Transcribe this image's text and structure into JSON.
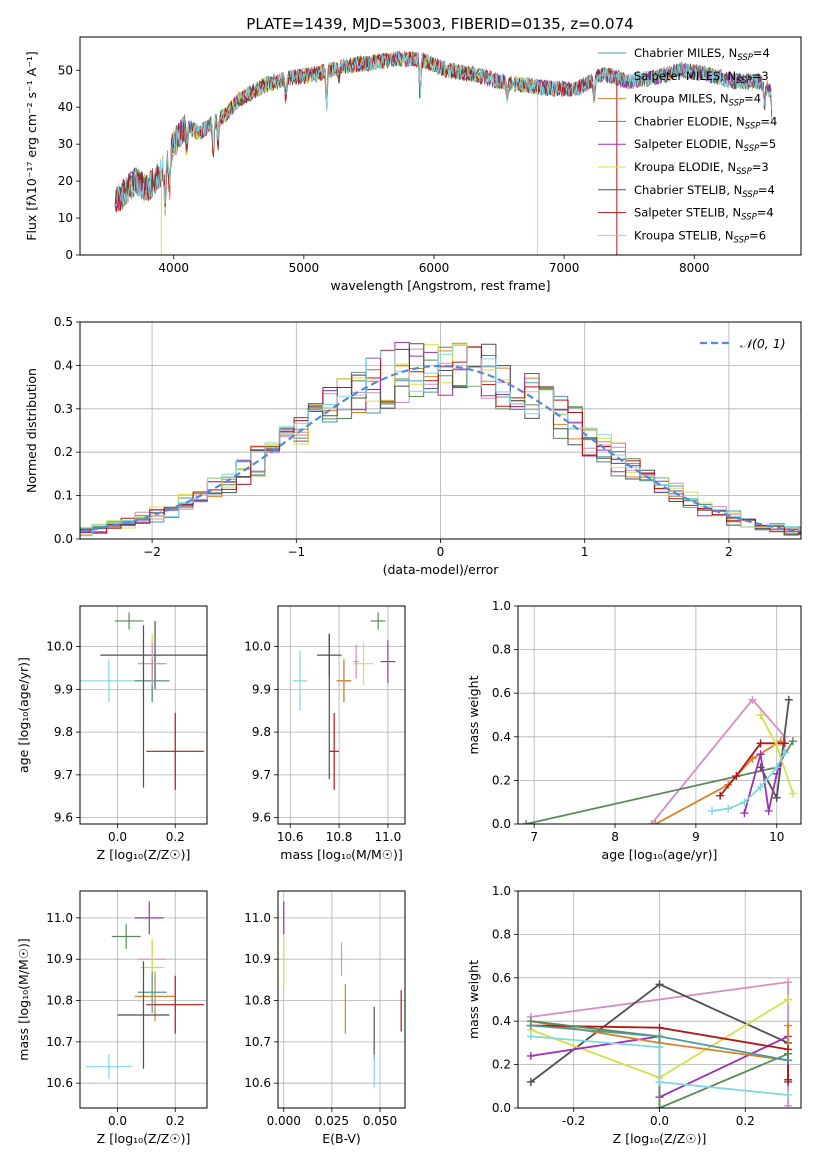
{
  "figure": {
    "title": "PLATE=1439, MJD=53003, FIBERID=0135, z=0.074"
  },
  "colors": {
    "Chabrier MILES": "#4c9a9a",
    "Salpeter MILES": "#d48fc0",
    "Kroupa MILES": "#d9822b",
    "Chabrier ELODIE": "#5a8a5a",
    "Salpeter ELODIE": "#9b30b0",
    "Kroupa ELODIE": "#d4e04a",
    "Chabrier STELIB": "#505050",
    "Salpeter STELIB": "#b01818",
    "Kroupa STELIB": "#80d8e0",
    "normal": "#5588dd",
    "fit_pink": "#e08ac0",
    "fit_blue": "#6688ee"
  },
  "legend_spectrum": [
    {
      "name": "Chabrier MILES",
      "base": "Chabrier MILES, N",
      "sub": "SSP",
      "tail": "=4"
    },
    {
      "name": "Salpeter MILES",
      "base": "Salpeter MILES, N",
      "sub": "SSP",
      "tail": "=3"
    },
    {
      "name": "Kroupa MILES",
      "base": "Kroupa MILES, N",
      "sub": "SSP",
      "tail": "=4"
    },
    {
      "name": "Chabrier ELODIE",
      "base": "Chabrier ELODIE, N",
      "sub": "SSP",
      "tail": "=4"
    },
    {
      "name": "Salpeter ELODIE",
      "base": "Salpeter ELODIE, N",
      "sub": "SSP",
      "tail": "=5"
    },
    {
      "name": "Kroupa ELODIE",
      "base": "Kroupa ELODIE, N",
      "sub": "SSP",
      "tail": "=3"
    },
    {
      "name": "Chabrier STELIB",
      "base": "Chabrier STELIB, N",
      "sub": "SSP",
      "tail": "=4"
    },
    {
      "name": "Salpeter STELIB",
      "base": "Salpeter STELIB, N",
      "sub": "SSP",
      "tail": "=4"
    },
    {
      "name": "Kroupa STELIB",
      "base": "Kroupa STELIB, N",
      "sub": "SSP",
      "tail": "=6"
    }
  ],
  "chart_data": [
    {
      "id": "spectrum",
      "type": "line",
      "xlabel": "wavelength [Angstrom, rest frame]",
      "ylabel": "Flux [fλ10⁻¹⁷ erg cm⁻² s⁻¹ A⁻¹]",
      "xlim": [
        3280,
        8820
      ],
      "ylim": [
        0,
        59
      ],
      "xticks": [
        4000,
        5000,
        6000,
        7000,
        8000
      ],
      "yticks": [
        0,
        10,
        20,
        30,
        40,
        50
      ],
      "continuum": {
        "x": [
          3550,
          3600,
          3700,
          3800,
          3900,
          3950,
          4000,
          4100,
          4200,
          4300,
          4400,
          4500,
          4700,
          4900,
          5100,
          5300,
          5500,
          5700,
          5900,
          6100,
          6300,
          6500,
          6700,
          6900,
          7100,
          7300,
          7500,
          7700,
          7900,
          8100,
          8300,
          8500,
          8600
        ],
        "y": [
          15,
          16,
          20,
          18,
          22,
          25,
          30,
          35,
          33,
          36,
          38,
          42,
          46,
          48,
          49,
          51,
          52,
          53,
          53,
          50,
          49,
          47,
          46,
          45,
          45,
          49,
          47,
          48,
          50,
          49,
          47,
          47,
          44
        ]
      },
      "absorption": [
        {
          "x": 3934,
          "depth": 10
        },
        {
          "x": 3969,
          "depth": 9
        },
        {
          "x": 4101,
          "depth": 6
        },
        {
          "x": 4304,
          "depth": 9
        },
        {
          "x": 4340,
          "depth": 7
        },
        {
          "x": 4861,
          "depth": 5
        },
        {
          "x": 5175,
          "depth": 9
        },
        {
          "x": 5270,
          "depth": 3
        },
        {
          "x": 5893,
          "depth": 10
        },
        {
          "x": 6563,
          "depth": 4
        },
        {
          "x": 7230,
          "depth": 5
        },
        {
          "x": 8540,
          "depth": 5
        },
        {
          "x": 8600,
          "depth": 7
        }
      ],
      "dropouts": [
        {
          "series": "Kroupa ELODIE",
          "x": 3905,
          "to": 0
        },
        {
          "series": "Kroupa ELODIE",
          "x": 6795,
          "to": 0
        },
        {
          "series": "Salpeter STELIB",
          "x": 7405,
          "to": 0
        }
      ],
      "series_range": {
        "Kroupa ELODIE": [
          3905,
          6795
        ],
        "Salpeter STELIB": [
          3550,
          7405
        ]
      }
    },
    {
      "id": "residuals",
      "type": "bar",
      "xlabel": "(data-model)/error",
      "ylabel": "Normed distribution",
      "xlim": [
        -2.5,
        2.5
      ],
      "ylim": [
        0,
        0.5
      ],
      "xticks": [
        -2,
        -1,
        0,
        1,
        2
      ],
      "yticks": [
        0.0,
        0.1,
        0.2,
        0.3,
        0.4,
        0.5
      ],
      "legend_label": "𝒩(0, 1)",
      "normal": {
        "mu": 0,
        "sigma": 1
      }
    },
    {
      "id": "age_vs_Z",
      "type": "scatter",
      "xlabel": "Z [log₁₀(Z/Z☉)]",
      "ylabel": "age  [log₁₀(age/yr)]",
      "xlim": [
        -0.13,
        0.31
      ],
      "ylim": [
        9.585,
        10.095
      ],
      "xticks": [
        0.0,
        0.2
      ],
      "yticks": [
        9.6,
        9.7,
        9.8,
        9.9,
        10.0
      ],
      "points": [
        {
          "series": "Chabrier ELODIE",
          "x": 0.04,
          "y": 10.06,
          "xerr": 0.05,
          "yerr": 0.02
        },
        {
          "series": "Chabrier STELIB",
          "x": 0.13,
          "y": 9.98,
          "xerr": 0.19,
          "yerr": 0.08
        },
        {
          "series": "Kroupa ELODIE",
          "x": 0.12,
          "y": 9.96,
          "xerr": 0.04,
          "yerr": 0.07
        },
        {
          "series": "Kroupa STELIB",
          "x": -0.03,
          "y": 9.92,
          "xerr": 0.12,
          "yerr": 0.05
        },
        {
          "series": "Kroupa MILES",
          "x": 0.12,
          "y": 9.92,
          "xerr": 0.06,
          "yerr": 0.05
        },
        {
          "series": "Chabrier MILES",
          "x": 0.12,
          "y": 9.92,
          "xerr": 0.06,
          "yerr": 0.05
        },
        {
          "series": "Salpeter MILES",
          "x": 0.12,
          "y": 9.96,
          "xerr": 0.05,
          "yerr": 0.05
        },
        {
          "series": "Chabrier STELIB",
          "x": 0.09,
          "y": 9.86,
          "xerr": 0.0,
          "yerr": 0.19
        },
        {
          "series": "Salpeter STELIB",
          "x": 0.2,
          "y": 9.755,
          "xerr": 0.1,
          "yerr": 0.09
        }
      ]
    },
    {
      "id": "age_vs_mass",
      "type": "scatter",
      "xlabel": "mass [log₁₀(M/M☉)]",
      "ylabel": "",
      "xlim": [
        10.55,
        11.07
      ],
      "ylim": [
        9.585,
        10.095
      ],
      "xticks": [
        10.6,
        10.8,
        11.0
      ],
      "yticks": [
        9.6,
        9.7,
        9.8,
        9.9,
        10.0
      ],
      "points": [
        {
          "series": "Chabrier ELODIE",
          "x": 10.96,
          "y": 10.06,
          "xerr": 0.03,
          "yerr": 0.02
        },
        {
          "series": "Chabrier STELIB",
          "x": 10.76,
          "y": 9.98,
          "xerr": 0.05,
          "yerr": 0.05
        },
        {
          "series": "Kroupa ELODIE",
          "x": 10.9,
          "y": 9.96,
          "xerr": 0.04,
          "yerr": 0.05
        },
        {
          "series": "Salpeter ELODIE",
          "x": 11.0,
          "y": 9.965,
          "xerr": 0.03,
          "yerr": 0.05
        },
        {
          "series": "Salpeter MILES",
          "x": 10.87,
          "y": 9.965,
          "xerr": 0.01,
          "yerr": 0.04
        },
        {
          "series": "Kroupa STELIB",
          "x": 10.64,
          "y": 9.92,
          "xerr": 0.03,
          "yerr": 0.07
        },
        {
          "series": "Chabrier MILES",
          "x": 10.82,
          "y": 9.92,
          "xerr": 0.03,
          "yerr": 0.05
        },
        {
          "series": "Kroupa MILES",
          "x": 10.82,
          "y": 9.92,
          "xerr": 0.03,
          "yerr": 0.05
        },
        {
          "series": "Chabrier STELIB",
          "x": 10.76,
          "y": 9.86,
          "xerr": 0.0,
          "yerr": 0.17
        },
        {
          "series": "Salpeter STELIB",
          "x": 10.78,
          "y": 9.755,
          "xerr": 0.02,
          "yerr": 0.09
        }
      ]
    },
    {
      "id": "weight_vs_age",
      "type": "line",
      "xlabel": "age  [log₁₀(age/yr)]",
      "ylabel": "mass weight",
      "xlim": [
        6.8,
        10.3
      ],
      "ylim": [
        0,
        1.0
      ],
      "xticks": [
        7,
        8,
        9,
        10
      ],
      "yticks": [
        0.0,
        0.2,
        0.4,
        0.6,
        0.8,
        1.0
      ],
      "series": [
        {
          "name": "Salpeter MILES",
          "x": [
            8.45,
            9.7,
            10.1
          ],
          "y": [
            0.0,
            0.57,
            0.4
          ]
        },
        {
          "name": "Chabrier ELODIE",
          "x": [
            6.9,
            10.0,
            10.2
          ],
          "y": [
            0.0,
            0.26,
            0.38
          ]
        },
        {
          "name": "Chabrier STELIB",
          "x": [
            9.8,
            10.0,
            10.15
          ],
          "y": [
            0.26,
            0.12,
            0.57
          ]
        },
        {
          "name": "Kroupa MILES",
          "x": [
            8.5,
            9.4,
            9.7,
            10.05
          ],
          "y": [
            0.0,
            0.18,
            0.3,
            0.38
          ]
        },
        {
          "name": "Salpeter STELIB",
          "x": [
            9.3,
            9.5,
            9.8,
            10.1
          ],
          "y": [
            0.13,
            0.22,
            0.37,
            0.37
          ]
        },
        {
          "name": "Salpeter ELODIE",
          "x": [
            9.6,
            9.8,
            9.9,
            10.0,
            10.1
          ],
          "y": [
            0.05,
            0.32,
            0.06,
            0.23,
            0.33
          ]
        },
        {
          "name": "Kroupa ELODIE",
          "x": [
            9.8,
            10.0,
            10.2
          ],
          "y": [
            0.5,
            0.36,
            0.14
          ]
        },
        {
          "name": "Kroupa STELIB",
          "x": [
            9.2,
            9.4,
            9.6,
            9.8,
            10.0,
            10.1
          ],
          "y": [
            0.06,
            0.07,
            0.1,
            0.17,
            0.26,
            0.33
          ]
        }
      ]
    },
    {
      "id": "mass_vs_Z",
      "type": "scatter",
      "xlabel": "Z [log₁₀(Z/Z☉)]",
      "ylabel": "mass [log₁₀(M/M☉)]",
      "xlim": [
        -0.13,
        0.31
      ],
      "ylim": [
        10.54,
        11.065
      ],
      "xticks": [
        0.0,
        0.2
      ],
      "yticks": [
        10.6,
        10.7,
        10.8,
        10.9,
        11.0
      ],
      "points": [
        {
          "series": "Chabrier ELODIE",
          "x": 0.03,
          "y": 10.955,
          "xerr": 0.05,
          "yerr": 0.03
        },
        {
          "series": "Salpeter ELODIE",
          "x": 0.11,
          "y": 11.0,
          "xerr": 0.05,
          "yerr": 0.04
        },
        {
          "series": "Salpeter MILES",
          "x": 0.12,
          "y": 10.9,
          "xerr": 0.05,
          "yerr": 0.04
        },
        {
          "series": "Kroupa ELODIE",
          "x": 0.12,
          "y": 10.88,
          "xerr": 0.04,
          "yerr": 0.07
        },
        {
          "series": "Kroupa MILES",
          "x": 0.13,
          "y": 10.81,
          "xerr": 0.07,
          "yerr": 0.06
        },
        {
          "series": "Salpeter STELIB",
          "x": 0.2,
          "y": 10.79,
          "xerr": 0.1,
          "yerr": 0.07
        },
        {
          "series": "Chabrier MILES",
          "x": 0.12,
          "y": 10.82,
          "xerr": 0.05,
          "yerr": 0.05
        },
        {
          "series": "Chabrier STELIB",
          "x": 0.09,
          "y": 10.765,
          "xerr": 0.09,
          "yerr": 0.13
        },
        {
          "series": "Kroupa STELIB",
          "x": -0.03,
          "y": 10.64,
          "xerr": 0.08,
          "yerr": 0.03
        }
      ]
    },
    {
      "id": "mass_vs_ebv",
      "type": "scatter",
      "xlabel": "E(B-V)",
      "ylabel": "",
      "xlim": [
        -0.003,
        0.063
      ],
      "ylim": [
        10.54,
        11.065
      ],
      "xticks": [
        0.0,
        0.025,
        0.05
      ],
      "yticks": [
        10.6,
        10.7,
        10.8,
        10.9,
        11.0
      ],
      "points": [
        {
          "series": "Salpeter ELODIE",
          "x": 0.0,
          "y": 11.0,
          "xerr": 0.0,
          "yerr": 0.04
        },
        {
          "series": "Kroupa ELODIE",
          "x": 0.0,
          "y": 10.89,
          "xerr": 0.0,
          "yerr": 0.06
        },
        {
          "series": "Salpeter MILES",
          "x": 0.03,
          "y": 10.9,
          "xerr": 0.0,
          "yerr": 0.04
        },
        {
          "series": "Kroupa MILES",
          "x": 0.032,
          "y": 10.78,
          "xerr": 0.0,
          "yerr": 0.06
        },
        {
          "series": "Chabrier STELIB",
          "x": 0.047,
          "y": 10.72,
          "xerr": 0.0,
          "yerr": 0.065
        },
        {
          "series": "Kroupa STELIB",
          "x": 0.047,
          "y": 10.63,
          "xerr": 0.0,
          "yerr": 0.04
        },
        {
          "series": "Salpeter STELIB",
          "x": 0.061,
          "y": 10.775,
          "xerr": 0.0,
          "yerr": 0.05
        }
      ]
    },
    {
      "id": "weight_vs_Z",
      "type": "line",
      "xlabel": "Z [log₁₀(Z/Z☉)]",
      "ylabel": "mass weight",
      "xlim": [
        -0.33,
        0.33
      ],
      "ylim": [
        0,
        1.0
      ],
      "xticks": [
        -0.2,
        0.0,
        0.2
      ],
      "yticks": [
        0.0,
        0.2,
        0.4,
        0.6,
        0.8,
        1.0
      ],
      "series": [
        {
          "name": "Salpeter MILES",
          "x": [
            -0.3,
            0.3,
            0.3
          ],
          "y": [
            0.42,
            0.58,
            0.01
          ]
        },
        {
          "name": "Chabrier STELIB",
          "x": [
            -0.3,
            0.0,
            0.3,
            0.3
          ],
          "y": [
            0.12,
            0.57,
            0.3,
            0.12
          ]
        },
        {
          "name": "Kroupa ELODIE",
          "x": [
            -0.3,
            0.0,
            0.3
          ],
          "y": [
            0.36,
            0.14,
            0.5
          ]
        },
        {
          "name": "Salpeter ELODIE",
          "x": [
            -0.3,
            0.0,
            0.0,
            0.3
          ],
          "y": [
            0.24,
            0.33,
            0.05,
            0.33
          ]
        },
        {
          "name": "Kroupa MILES",
          "x": [
            -0.3,
            0.0,
            0.3,
            0.3
          ],
          "y": [
            0.4,
            0.3,
            0.22,
            0.38
          ]
        },
        {
          "name": "Salpeter STELIB",
          "x": [
            -0.3,
            0.0,
            0.3,
            0.3
          ],
          "y": [
            0.38,
            0.37,
            0.27,
            0.13
          ]
        },
        {
          "name": "Chabrier ELODIE",
          "x": [
            -0.3,
            0.0,
            0.0,
            0.3
          ],
          "y": [
            0.4,
            0.33,
            0.0,
            0.25
          ]
        },
        {
          "name": "Chabrier MILES",
          "x": [
            -0.3,
            0.0,
            0.3
          ],
          "y": [
            0.38,
            0.33,
            0.22
          ]
        },
        {
          "name": "Kroupa STELIB",
          "x": [
            -0.3,
            0.0,
            0.0,
            0.3
          ],
          "y": [
            0.33,
            0.28,
            0.12,
            0.06
          ]
        }
      ]
    }
  ]
}
